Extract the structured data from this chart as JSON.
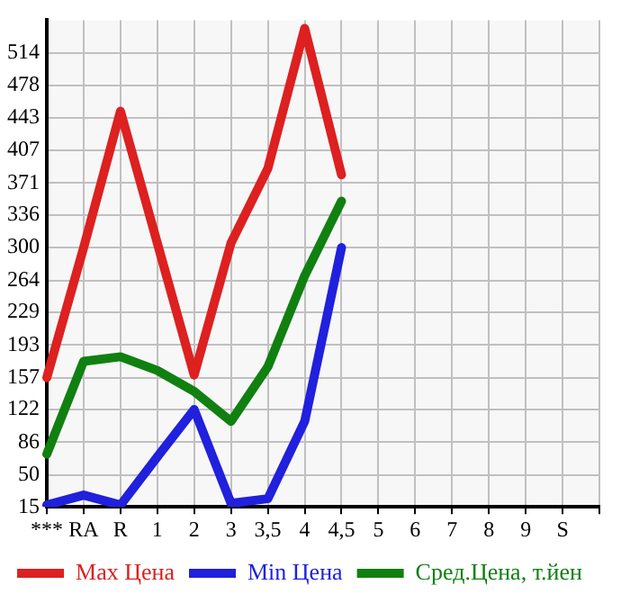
{
  "chart_data": {
    "type": "line",
    "categories": [
      "***",
      "RA",
      "R",
      "1",
      "2",
      "3",
      "3,5",
      "4",
      "4,5",
      "5",
      "6",
      "7",
      "8",
      "9",
      "S",
      null
    ],
    "series": [
      {
        "name": "Max Цена",
        "color": "#dd2020",
        "values": [
          157,
          300,
          450,
          305,
          160,
          305,
          387,
          541,
          380,
          null,
          null,
          null,
          null,
          null,
          null,
          null
        ]
      },
      {
        "name": "Min Цена",
        "color": "#2020dd",
        "values": [
          17,
          28,
          17,
          70,
          122,
          19,
          24,
          109,
          300,
          null,
          null,
          null,
          null,
          null,
          null,
          null
        ]
      },
      {
        "name": "Сред.Цена, т.йен",
        "color": "#108010",
        "values": [
          73,
          175,
          180,
          165,
          142,
          109,
          169,
          269,
          351,
          null,
          null,
          null,
          null,
          null,
          null,
          null
        ]
      }
    ],
    "ylim": [
      15,
      550
    ],
    "yticks": [
      15,
      50,
      86,
      122,
      157,
      193,
      229,
      264,
      300,
      336,
      371,
      407,
      443,
      478,
      514
    ],
    "grid": true,
    "legend": "bottom",
    "marker": "none",
    "line_style": "solid"
  }
}
